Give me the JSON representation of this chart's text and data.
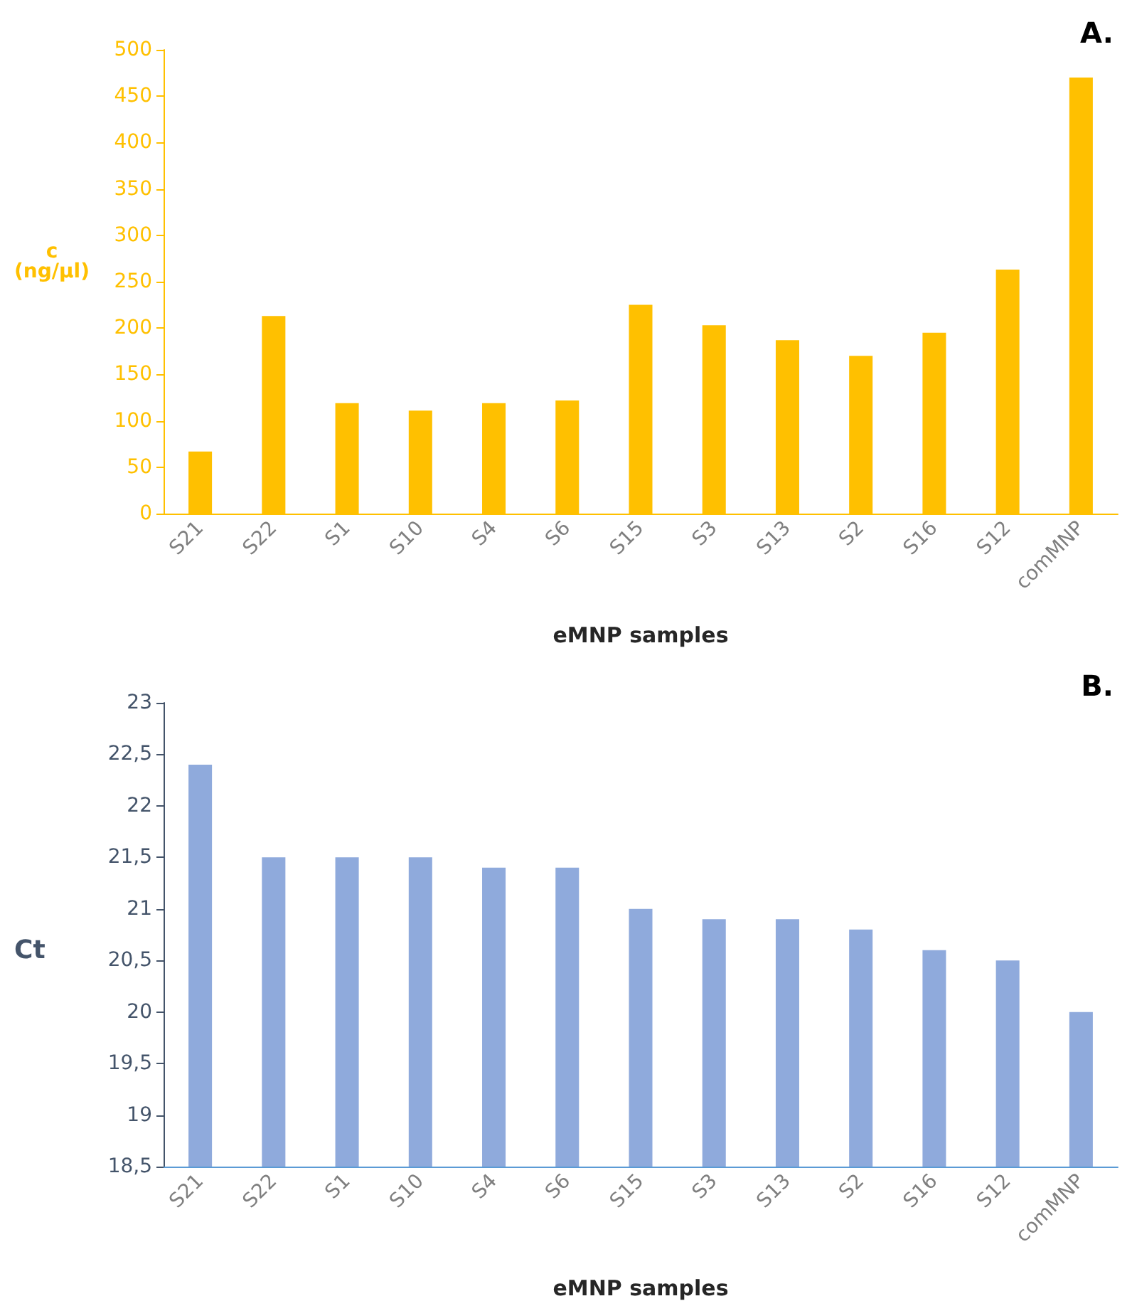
{
  "chart_data": [
    {
      "type": "bar",
      "title": "A.",
      "xlabel": "eMNP samples",
      "ylabel": "c (ng/µl)",
      "categories": [
        "S21",
        "S22",
        "S1",
        "S10",
        "S4",
        "S6",
        "S15",
        "S3",
        "S13",
        "S2",
        "S16",
        "S12",
        "comMNP"
      ],
      "values": [
        67,
        213,
        119,
        111,
        119,
        122,
        225,
        203,
        187,
        170,
        195,
        263,
        470
      ],
      "color": "#ffc000",
      "ylim": [
        0,
        500
      ],
      "yticks": [
        0,
        50,
        100,
        150,
        200,
        250,
        300,
        350,
        400,
        450,
        500
      ],
      "grid": false
    },
    {
      "type": "bar",
      "title": "B.",
      "xlabel": "eMNP samples",
      "ylabel": "Ct",
      "categories": [
        "S21",
        "S22",
        "S1",
        "S10",
        "S4",
        "S6",
        "S15",
        "S3",
        "S13",
        "S2",
        "S16",
        "S12",
        "comMNP"
      ],
      "values": [
        22.4,
        21.5,
        21.5,
        21.5,
        21.4,
        21.4,
        21.0,
        20.9,
        20.9,
        20.8,
        20.6,
        20.5,
        20.0
      ],
      "color": "#8faadc",
      "ylim": [
        18.5,
        23
      ],
      "yticks": [
        {
          "value": 18.5,
          "label": "18,5"
        },
        19,
        {
          "value": 19.5,
          "label": "19,5"
        },
        20,
        {
          "value": 20.5,
          "label": "20,5"
        },
        21,
        {
          "value": 21.5,
          "label": "21,5"
        },
        22,
        {
          "value": 22.5,
          "label": "22,5"
        },
        23
      ],
      "grid": false
    }
  ]
}
